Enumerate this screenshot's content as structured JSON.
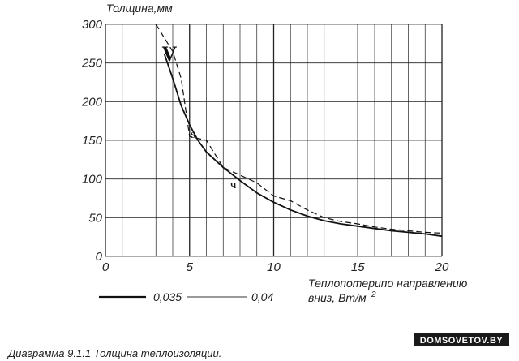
{
  "chart_data": {
    "type": "line",
    "xlabel_line1": "Теплопотерипо направлению",
    "xlabel_line2": "вниз, Вт/м",
    "xlabel_sup": "2",
    "ylabel": "Толщина,мм",
    "xlim": [
      0,
      20
    ],
    "ylim": [
      0,
      300
    ],
    "x_ticks": [
      0,
      5,
      10,
      15,
      20
    ],
    "y_ticks": [
      0,
      50,
      100,
      150,
      200,
      250,
      300
    ],
    "grid": true,
    "series": [
      {
        "name": "0,035",
        "style": "solid",
        "x": [
          3.5,
          4,
          4.5,
          5,
          5.5,
          6,
          7,
          8,
          9,
          10,
          11,
          12,
          13,
          14,
          15,
          16,
          17,
          18,
          19,
          20
        ],
        "y": [
          262,
          230,
          195,
          170,
          150,
          135,
          115,
          98,
          82,
          70,
          60,
          52,
          46,
          42,
          39,
          36,
          33,
          31,
          29,
          26
        ]
      },
      {
        "name": "0,04",
        "style": "dashed",
        "x": [
          3,
          4,
          4.5,
          5,
          6,
          7,
          8,
          9,
          10,
          11,
          12,
          13,
          14,
          15,
          16,
          17,
          18,
          19,
          20
        ],
        "y": [
          300,
          265,
          230,
          155,
          150,
          115,
          105,
          95,
          78,
          72,
          60,
          50,
          45,
          42,
          38,
          35,
          33,
          31,
          30
        ]
      }
    ],
    "curve_labels": [
      {
        "text": "V",
        "x": 3.8,
        "y": 253
      },
      {
        "text": "S",
        "x": 5.2,
        "y": 153
      },
      {
        "text": "Ч",
        "x": 7.6,
        "y": 88
      }
    ]
  },
  "legend": [
    {
      "name": "0,035",
      "style": "solid"
    },
    {
      "name": "0,04",
      "style": "thin"
    }
  ],
  "caption": "Диаграмма 9.1.1 Толщина теплоизоляции.",
  "watermark": "DOMSOVETOV.BY"
}
